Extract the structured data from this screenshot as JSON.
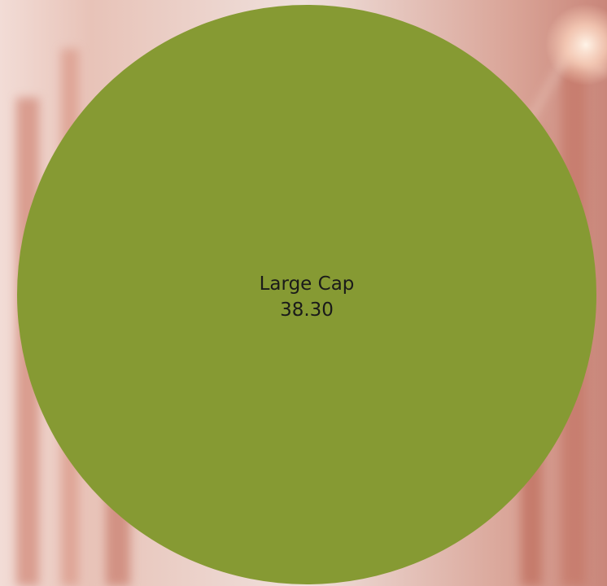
{
  "chart_data": {
    "type": "pie",
    "title": "",
    "slices": [
      {
        "label": "Large Cap",
        "value": 38.3,
        "value_text": "38.30",
        "color": "#869a33"
      }
    ],
    "legend": "none"
  },
  "background": {
    "base_color": "#e9d6d2",
    "tint_color": "#b55a4a",
    "glow_color": "#ffd9c2"
  }
}
